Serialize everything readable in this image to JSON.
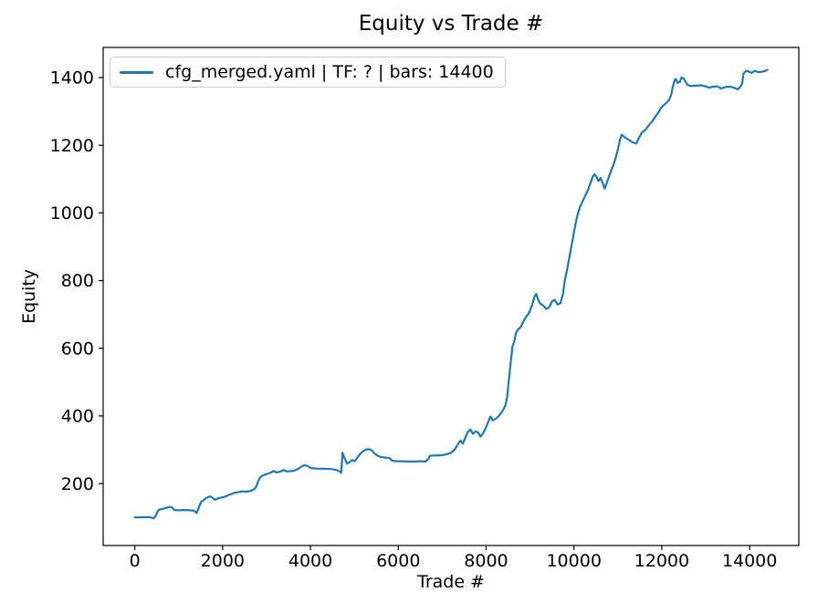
{
  "chart_data": {
    "type": "line",
    "title": "Equity vs Trade #",
    "xlabel": "Trade #",
    "ylabel": "Equity",
    "legend_position": "upper left",
    "grid": false,
    "xlim": [
      -720,
      15120
    ],
    "ylim": [
      17,
      1489
    ],
    "xticks": [
      0,
      2000,
      4000,
      6000,
      8000,
      10000,
      12000,
      14000
    ],
    "yticks": [
      200,
      400,
      600,
      800,
      1000,
      1200,
      1400
    ],
    "line_color": "#1f77b4",
    "spine_color": "#000000",
    "series": [
      {
        "name": "cfg_merged.yaml | TF: ? | bars: 14400",
        "points": [
          [
            0,
            100
          ],
          [
            120,
            100
          ],
          [
            250,
            101
          ],
          [
            380,
            100
          ],
          [
            430,
            97
          ],
          [
            470,
            103
          ],
          [
            510,
            115
          ],
          [
            540,
            122
          ],
          [
            620,
            125
          ],
          [
            700,
            127
          ],
          [
            780,
            131
          ],
          [
            850,
            130
          ],
          [
            900,
            122
          ],
          [
            1000,
            121
          ],
          [
            1120,
            122
          ],
          [
            1250,
            121
          ],
          [
            1345,
            120
          ],
          [
            1410,
            113
          ],
          [
            1460,
            130
          ],
          [
            1510,
            146
          ],
          [
            1570,
            151
          ],
          [
            1620,
            157
          ],
          [
            1670,
            160
          ],
          [
            1720,
            162
          ],
          [
            1780,
            157
          ],
          [
            1830,
            152
          ],
          [
            1890,
            156
          ],
          [
            1950,
            158
          ],
          [
            2020,
            160
          ],
          [
            2090,
            163
          ],
          [
            2150,
            167
          ],
          [
            2220,
            170
          ],
          [
            2290,
            173
          ],
          [
            2360,
            175
          ],
          [
            2450,
            177
          ],
          [
            2550,
            176
          ],
          [
            2650,
            179
          ],
          [
            2720,
            183
          ],
          [
            2770,
            192
          ],
          [
            2810,
            207
          ],
          [
            2850,
            217
          ],
          [
            2900,
            223
          ],
          [
            2970,
            227
          ],
          [
            3050,
            230
          ],
          [
            3120,
            234
          ],
          [
            3160,
            237
          ],
          [
            3220,
            233
          ],
          [
            3300,
            235
          ],
          [
            3390,
            240
          ],
          [
            3460,
            236
          ],
          [
            3560,
            237
          ],
          [
            3650,
            239
          ],
          [
            3740,
            245
          ],
          [
            3800,
            251
          ],
          [
            3870,
            254
          ],
          [
            3940,
            252
          ],
          [
            3990,
            247
          ],
          [
            4060,
            245
          ],
          [
            4180,
            244
          ],
          [
            4320,
            244
          ],
          [
            4470,
            243
          ],
          [
            4600,
            240
          ],
          [
            4660,
            236
          ],
          [
            4700,
            232
          ],
          [
            4730,
            291
          ],
          [
            4770,
            277
          ],
          [
            4830,
            259
          ],
          [
            4890,
            263
          ],
          [
            4950,
            270
          ],
          [
            5010,
            266
          ],
          [
            5080,
            279
          ],
          [
            5150,
            290
          ],
          [
            5220,
            298
          ],
          [
            5300,
            302
          ],
          [
            5380,
            300
          ],
          [
            5450,
            290
          ],
          [
            5520,
            283
          ],
          [
            5600,
            279
          ],
          [
            5700,
            277
          ],
          [
            5810,
            275
          ],
          [
            5850,
            268
          ],
          [
            5950,
            266
          ],
          [
            6080,
            266
          ],
          [
            6220,
            265
          ],
          [
            6360,
            265
          ],
          [
            6500,
            266
          ],
          [
            6620,
            265
          ],
          [
            6680,
            272
          ],
          [
            6720,
            282
          ],
          [
            6800,
            283
          ],
          [
            6900,
            283
          ],
          [
            7000,
            284
          ],
          [
            7100,
            287
          ],
          [
            7200,
            291
          ],
          [
            7280,
            300
          ],
          [
            7340,
            312
          ],
          [
            7390,
            323
          ],
          [
            7420,
            327
          ],
          [
            7470,
            318
          ],
          [
            7530,
            337
          ],
          [
            7580,
            352
          ],
          [
            7640,
            360
          ],
          [
            7700,
            347
          ],
          [
            7760,
            354
          ],
          [
            7820,
            351
          ],
          [
            7870,
            339
          ],
          [
            7930,
            348
          ],
          [
            7990,
            364
          ],
          [
            8050,
            383
          ],
          [
            8100,
            398
          ],
          [
            8150,
            387
          ],
          [
            8210,
            391
          ],
          [
            8270,
            397
          ],
          [
            8330,
            407
          ],
          [
            8390,
            418
          ],
          [
            8440,
            432
          ],
          [
            8480,
            458
          ],
          [
            8510,
            495
          ],
          [
            8540,
            535
          ],
          [
            8570,
            570
          ],
          [
            8600,
            605
          ],
          [
            8640,
            620
          ],
          [
            8680,
            645
          ],
          [
            8730,
            656
          ],
          [
            8790,
            663
          ],
          [
            8850,
            680
          ],
          [
            8920,
            694
          ],
          [
            8980,
            705
          ],
          [
            9040,
            725
          ],
          [
            9100,
            752
          ],
          [
            9140,
            760
          ],
          [
            9180,
            745
          ],
          [
            9230,
            732
          ],
          [
            9300,
            726
          ],
          [
            9370,
            716
          ],
          [
            9440,
            722
          ],
          [
            9500,
            738
          ],
          [
            9560,
            743
          ],
          [
            9630,
            729
          ],
          [
            9690,
            733
          ],
          [
            9750,
            760
          ],
          [
            9790,
            800
          ],
          [
            9840,
            830
          ],
          [
            9890,
            865
          ],
          [
            9940,
            900
          ],
          [
            9990,
            935
          ],
          [
            10040,
            970
          ],
          [
            10090,
            998
          ],
          [
            10140,
            1018
          ],
          [
            10200,
            1035
          ],
          [
            10260,
            1052
          ],
          [
            10320,
            1068
          ],
          [
            10380,
            1090
          ],
          [
            10430,
            1108
          ],
          [
            10470,
            1114
          ],
          [
            10520,
            1105
          ],
          [
            10560,
            1094
          ],
          [
            10610,
            1103
          ],
          [
            10660,
            1086
          ],
          [
            10700,
            1072
          ],
          [
            10750,
            1090
          ],
          [
            10800,
            1108
          ],
          [
            10850,
            1126
          ],
          [
            10900,
            1142
          ],
          [
            10950,
            1163
          ],
          [
            11000,
            1188
          ],
          [
            11050,
            1217
          ],
          [
            11090,
            1231
          ],
          [
            11160,
            1223
          ],
          [
            11240,
            1217
          ],
          [
            11330,
            1209
          ],
          [
            11420,
            1205
          ],
          [
            11480,
            1222
          ],
          [
            11550,
            1238
          ],
          [
            11630,
            1246
          ],
          [
            11700,
            1258
          ],
          [
            11760,
            1267
          ],
          [
            11820,
            1278
          ],
          [
            11870,
            1288
          ],
          [
            11930,
            1298
          ],
          [
            11990,
            1312
          ],
          [
            12050,
            1319
          ],
          [
            12110,
            1326
          ],
          [
            12160,
            1333
          ],
          [
            12210,
            1347
          ],
          [
            12250,
            1372
          ],
          [
            12290,
            1392
          ],
          [
            12320,
            1396
          ],
          [
            12360,
            1384
          ],
          [
            12410,
            1387
          ],
          [
            12450,
            1400
          ],
          [
            12500,
            1397
          ],
          [
            12540,
            1387
          ],
          [
            12590,
            1378
          ],
          [
            12660,
            1375
          ],
          [
            12780,
            1376
          ],
          [
            12900,
            1377
          ],
          [
            13000,
            1374
          ],
          [
            13080,
            1370
          ],
          [
            13170,
            1373
          ],
          [
            13260,
            1374
          ],
          [
            13350,
            1368
          ],
          [
            13450,
            1372
          ],
          [
            13560,
            1373
          ],
          [
            13660,
            1369
          ],
          [
            13730,
            1365
          ],
          [
            13790,
            1373
          ],
          [
            13830,
            1382
          ],
          [
            13860,
            1412
          ],
          [
            13920,
            1420
          ],
          [
            13990,
            1417
          ],
          [
            14050,
            1414
          ],
          [
            14120,
            1420
          ],
          [
            14200,
            1416
          ],
          [
            14280,
            1417
          ],
          [
            14350,
            1419
          ],
          [
            14400,
            1423
          ]
        ]
      }
    ]
  }
}
